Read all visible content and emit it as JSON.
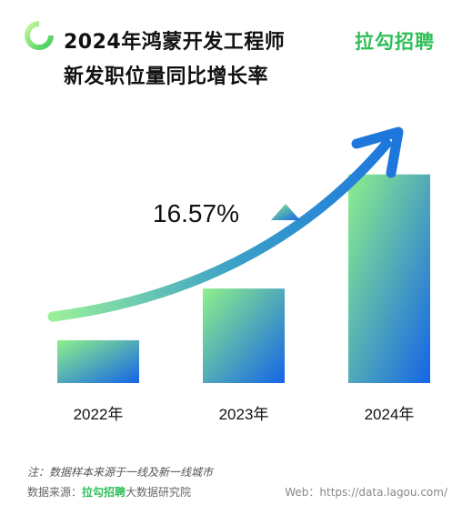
{
  "header": {
    "title_line1": "2024年鸿蒙开发工程师",
    "title_line2": "新发职位量同比增长率",
    "brand": "拉勾招聘",
    "logo_icon": "ring-logo-icon"
  },
  "chart_data": {
    "type": "bar",
    "categories": [
      "2022年",
      "2023年",
      "2024年"
    ],
    "values": [
      24,
      53,
      117
    ],
    "growth_label": "16.57%",
    "ylim": [
      0,
      125
    ],
    "grid": false,
    "colors": {
      "top": "#8ef08a",
      "bottom": "#1464e6",
      "arrow": "#1e78dc",
      "arrow_start": "#9af09a"
    }
  },
  "footer": {
    "note": "注：数据样本来源于一线及新一线城市",
    "source_prefix": "数据来源：",
    "source_brand": "拉勾招聘",
    "source_suffix": "大数据研究院",
    "web": "Web：https://data.lagou.com/"
  }
}
